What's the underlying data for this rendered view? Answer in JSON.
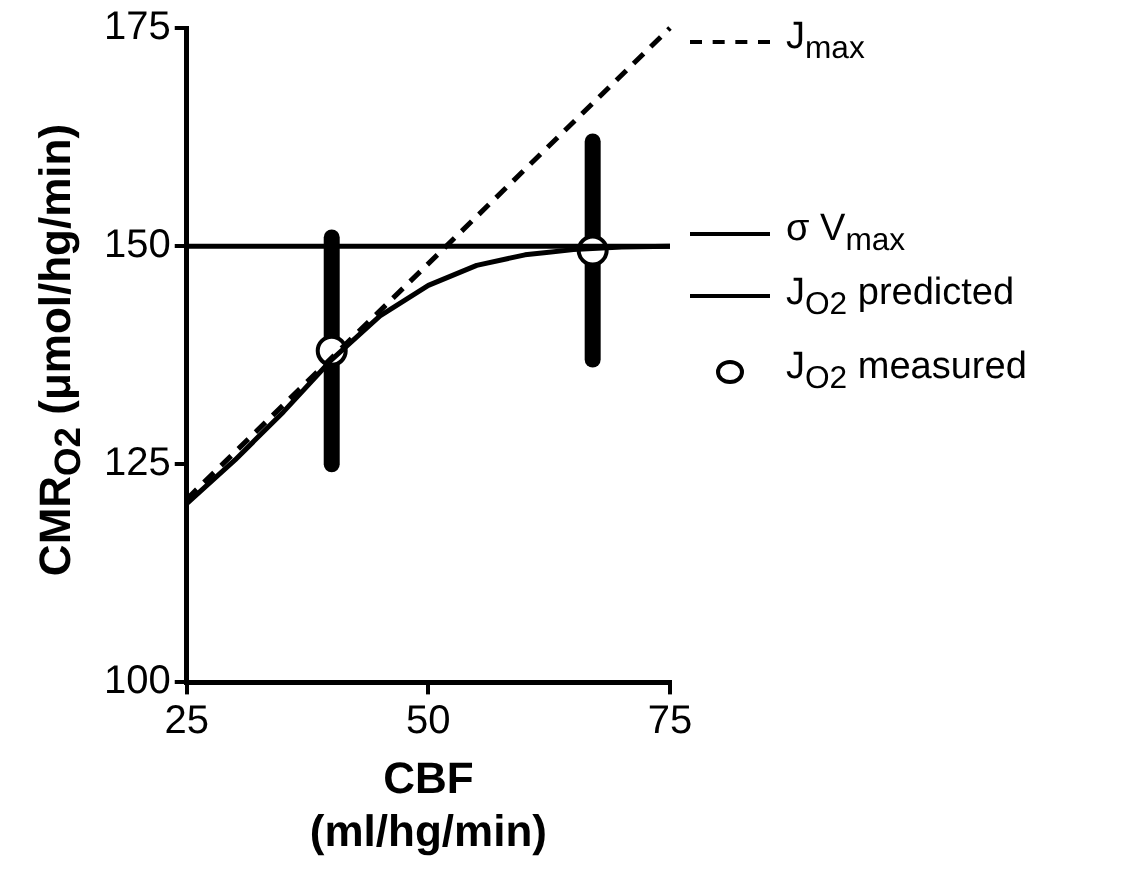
{
  "chart_data": {
    "type": "line",
    "xlabel": "CBF\n(ml/hg/min)",
    "ylabel": "CMR$_{O2}$ (μmol/hg/min)",
    "xlim": [
      25,
      75
    ],
    "xticks": [
      25,
      50,
      75
    ],
    "ylim": [
      100,
      175
    ],
    "yticks": [
      100,
      125,
      150,
      175
    ],
    "grid": false,
    "legend": "right",
    "series": [
      {
        "name": "J$_{max}$",
        "line_style": "dashed",
        "color": "#000000",
        "x": [
          25,
          75
        ],
        "values": [
          121,
          175
        ]
      },
      {
        "name": "σ V$_{max}$",
        "line_style": "solid",
        "color": "#000000",
        "x": [
          25,
          75
        ],
        "values": [
          150,
          150
        ]
      },
      {
        "name": "J$_{O2}$ predicted",
        "line_style": "solid",
        "color": "#000000",
        "x": [
          25,
          30,
          35,
          40,
          45,
          50,
          55,
          60,
          65,
          70,
          75
        ],
        "values": [
          120.5,
          125.5,
          131,
          137,
          142,
          145.5,
          147.8,
          149,
          149.6,
          149.9,
          150
        ]
      },
      {
        "name": "J$_{O2}$ measured",
        "type": "scatter",
        "marker": "circle",
        "color": "#000000",
        "x": [
          40,
          67
        ],
        "values": [
          138,
          149.5
        ],
        "errors": [
          [
            125,
            151
          ],
          [
            137,
            162
          ]
        ]
      }
    ]
  }
}
